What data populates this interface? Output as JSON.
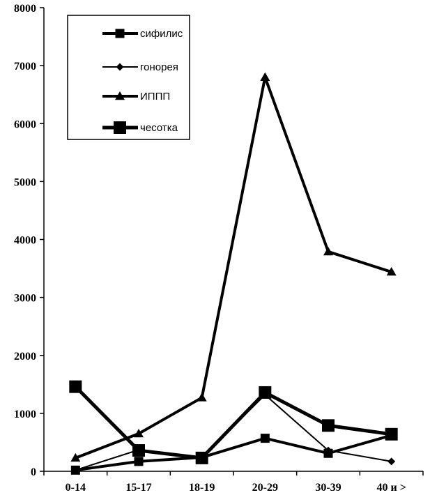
{
  "chart_data": {
    "type": "line",
    "categories": [
      "0-14",
      "15-17",
      "18-19",
      "20-29",
      "30-39",
      "40 и >"
    ],
    "ylim": [
      0,
      8000
    ],
    "y_ticks": [
      0,
      1000,
      2000,
      3000,
      4000,
      5000,
      6000,
      7000,
      8000
    ],
    "grid": false,
    "legend_position": "top-left",
    "series": [
      {
        "name": "сифилис",
        "marker": "square",
        "values": [
          20,
          170,
          240,
          570,
          310,
          620
        ]
      },
      {
        "name": "гонорея",
        "marker": "diamond",
        "values": [
          20,
          370,
          240,
          1320,
          360,
          170
        ]
      },
      {
        "name": "ИППП",
        "marker": "triangle",
        "values": [
          230,
          650,
          1270,
          6800,
          3790,
          3440
        ]
      },
      {
        "name": "чесотка",
        "marker": "square-large",
        "values": [
          1460,
          360,
          230,
          1360,
          790,
          640
        ]
      }
    ]
  }
}
